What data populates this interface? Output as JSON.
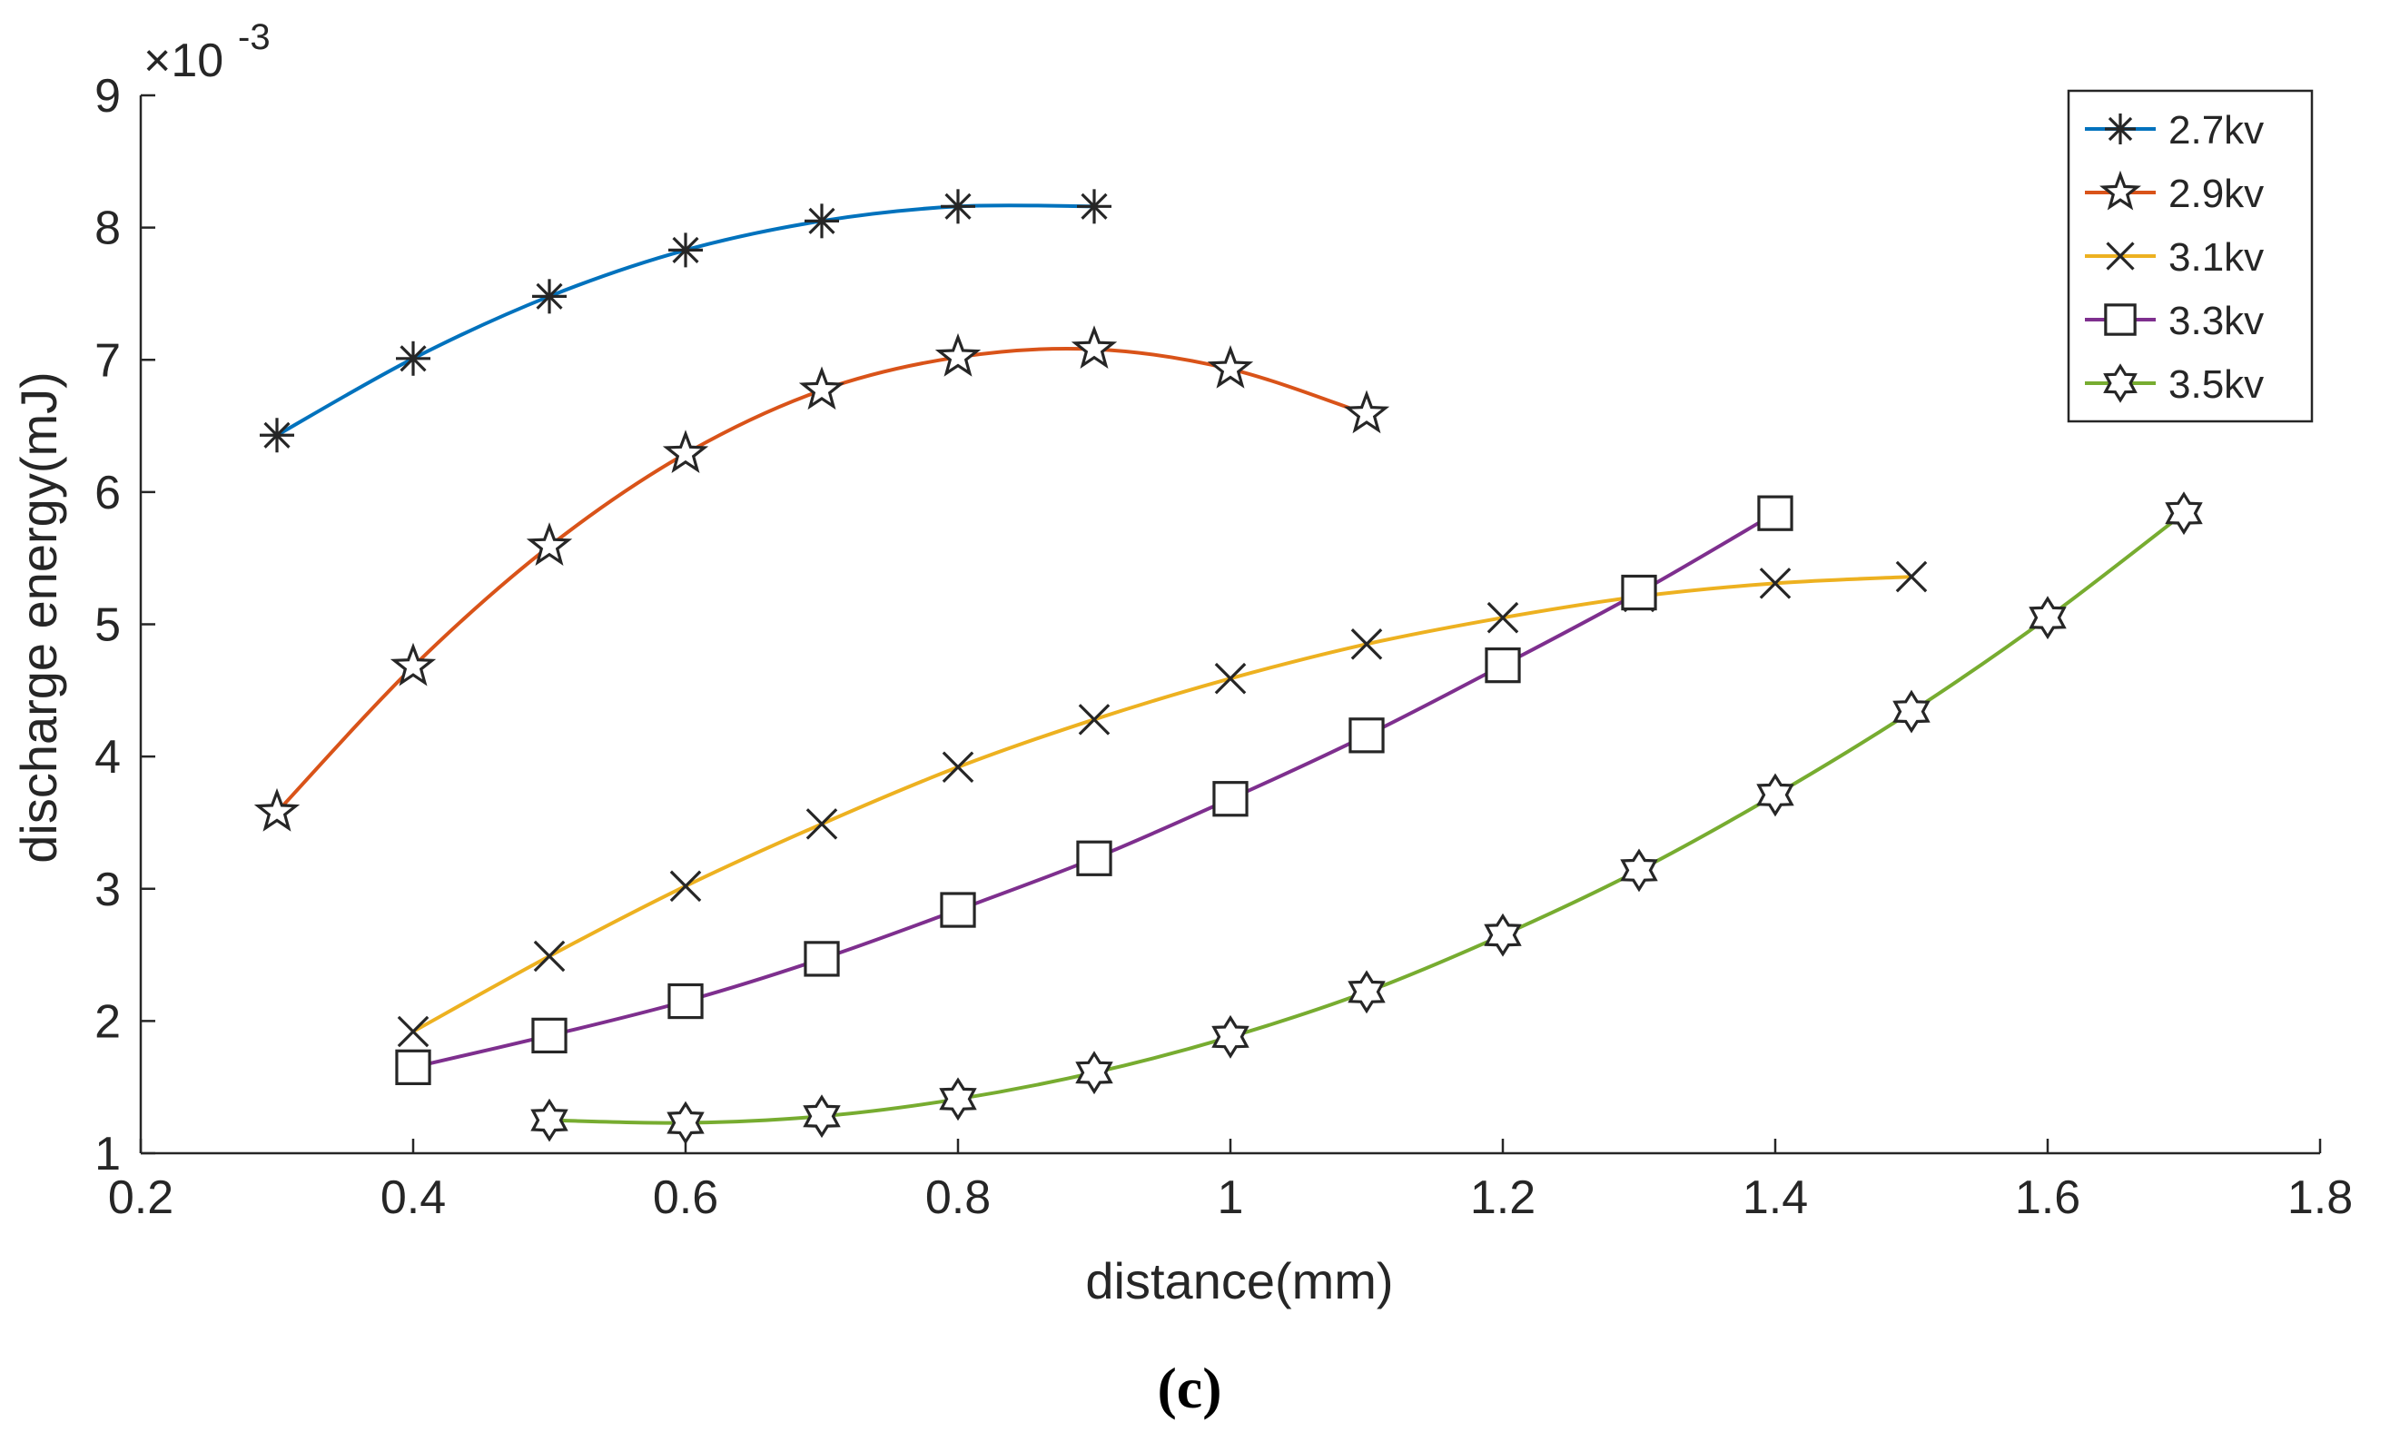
{
  "chart_data": {
    "type": "line",
    "title": "",
    "xlabel": "distance(mm)",
    "ylabel": "discharge energy(mJ)",
    "y_scale_label": "×10",
    "y_scale_exponent": "-3",
    "xlim": [
      0.2,
      1.8
    ],
    "ylim": [
      1,
      9
    ],
    "xticks": [
      "0.2",
      "0.4",
      "0.6",
      "0.8",
      "1",
      "1.2",
      "1.4",
      "1.6",
      "1.8"
    ],
    "yticks": [
      "1",
      "2",
      "3",
      "4",
      "5",
      "6",
      "7",
      "8",
      "9"
    ],
    "legend_position": "top-right",
    "caption": "(c)",
    "series": [
      {
        "name": "2.7kv",
        "color": "#0072BD",
        "marker": "asterisk",
        "x": [
          0.3,
          0.4,
          0.5,
          0.6,
          0.7,
          0.8,
          0.9
        ],
        "y": [
          6.43,
          7.01,
          7.48,
          7.83,
          8.05,
          8.16,
          8.16
        ]
      },
      {
        "name": "2.9kv",
        "color": "#D95319",
        "marker": "pentagram",
        "x": [
          0.3,
          0.4,
          0.5,
          0.6,
          0.7,
          0.8,
          0.9,
          1.0,
          1.1
        ],
        "y": [
          3.58,
          4.68,
          5.59,
          6.29,
          6.77,
          7.02,
          7.08,
          6.93,
          6.59
        ]
      },
      {
        "name": "3.1kv",
        "color": "#EDB120",
        "marker": "x",
        "x": [
          0.4,
          0.5,
          0.6,
          0.7,
          0.8,
          0.9,
          1.0,
          1.1,
          1.2,
          1.3,
          1.4,
          1.5
        ],
        "y": [
          1.92,
          2.49,
          3.02,
          3.49,
          3.92,
          4.28,
          4.59,
          4.85,
          5.05,
          5.21,
          5.31,
          5.36
        ]
      },
      {
        "name": "3.3kv",
        "color": "#7E2F8E",
        "marker": "square",
        "x": [
          0.4,
          0.5,
          0.6,
          0.7,
          0.8,
          0.9,
          1.0,
          1.1,
          1.2,
          1.3,
          1.4
        ],
        "y": [
          1.65,
          1.89,
          2.15,
          2.47,
          2.84,
          3.23,
          3.68,
          4.16,
          4.69,
          5.24,
          5.84
        ]
      },
      {
        "name": "3.5kv",
        "color": "#77AC30",
        "marker": "hexagram",
        "x": [
          0.5,
          0.6,
          0.7,
          0.8,
          0.9,
          1.0,
          1.1,
          1.2,
          1.3,
          1.4,
          1.5,
          1.6,
          1.7
        ],
        "y": [
          1.25,
          1.23,
          1.28,
          1.41,
          1.61,
          1.88,
          2.22,
          2.65,
          3.14,
          3.71,
          4.34,
          5.05,
          5.84
        ]
      }
    ]
  }
}
